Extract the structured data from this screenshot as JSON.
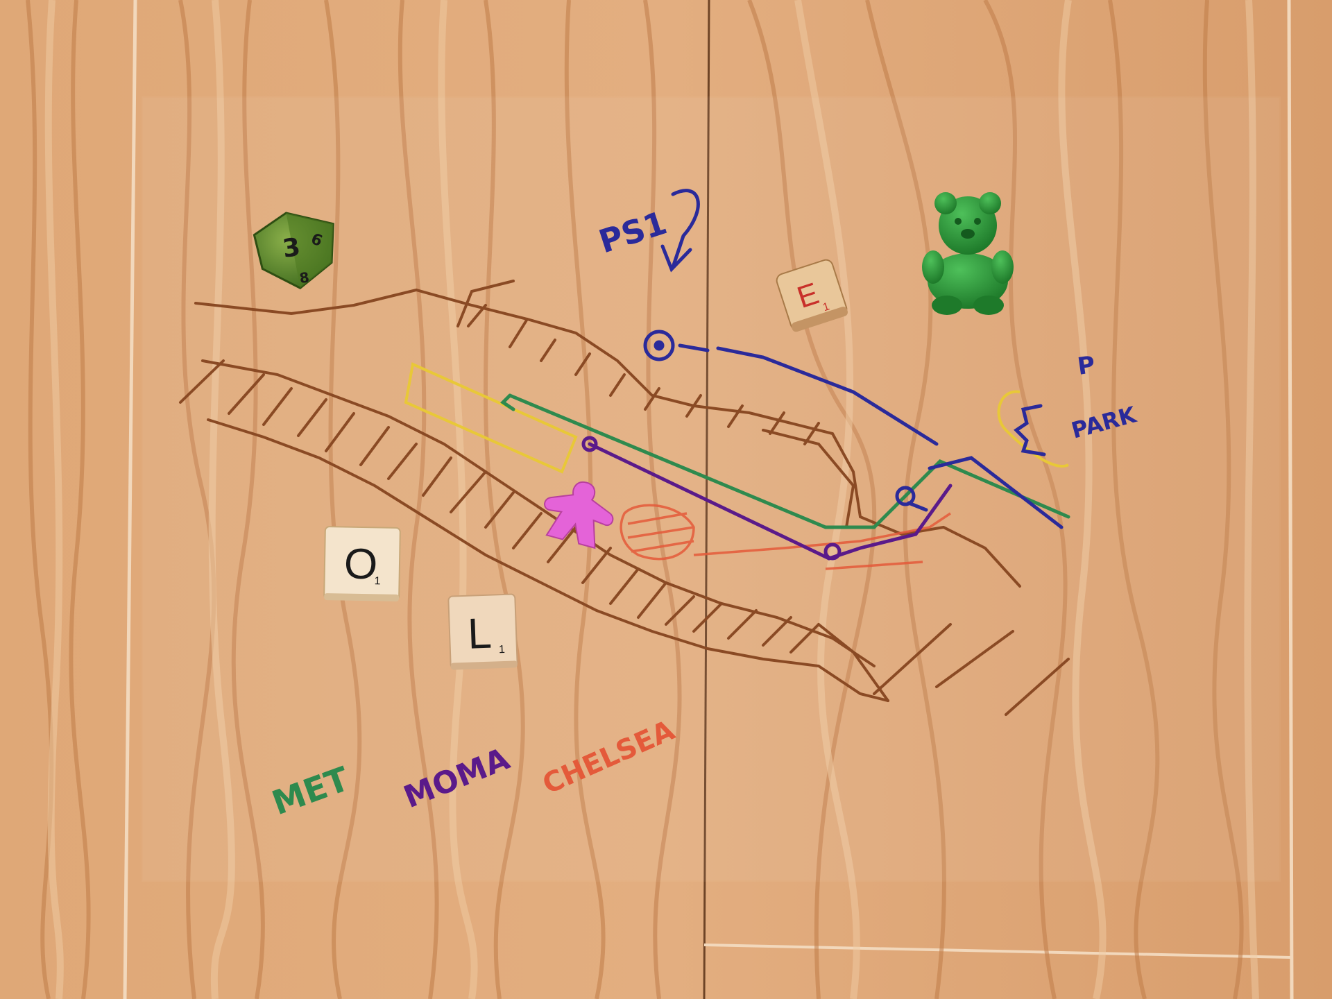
{
  "photo": {
    "surface": "wood-grain floor with clear plastic sheet",
    "colors": {
      "wood_light": "#e6b48a",
      "wood_mid": "#d59a6b",
      "wood_dark": "#b8703f",
      "brown_marker": "#8a4a24",
      "blue_marker": "#2a2a9a",
      "green_marker": "#2e8a4e",
      "purple_marker": "#5a1a8a",
      "orange_marker": "#e45a3a",
      "yellow_marker": "#e8c838",
      "meeple_pink": "#e463d8",
      "bear_green": "#2e9a3e",
      "d8_green": "#5a8a2a"
    }
  },
  "labels": {
    "ps1": "PS1",
    "p": "P",
    "park": "PARK",
    "met": "MET",
    "moma": "MOMA",
    "chelsea": "CHELSEA"
  },
  "tiles": {
    "o": {
      "letter": "O",
      "score": "1"
    },
    "l": {
      "letter": "L",
      "score": "1"
    }
  },
  "dice": {
    "d8": {
      "top": "3",
      "side1": "6",
      "side2": "8"
    },
    "letter_die": {
      "letter": "E",
      "score": "1"
    }
  }
}
